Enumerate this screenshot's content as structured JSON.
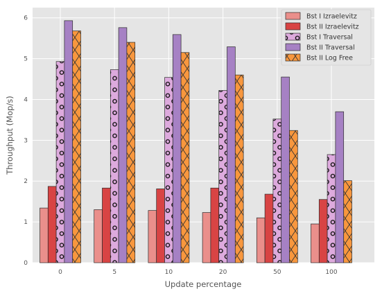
{
  "chart_data": {
    "type": "bar",
    "xlabel": "Update percentage",
    "ylabel": "Throughput (Mop/s)",
    "categories": [
      "0",
      "5",
      "10",
      "20",
      "50",
      "100"
    ],
    "ylim": [
      0,
      6.25
    ],
    "yticks": [
      0,
      1,
      2,
      3,
      4,
      5,
      6
    ],
    "grid": true,
    "legend_position": "top-right",
    "series": [
      {
        "name": "Bst I Izraelevitz",
        "color": "#ea8f8b",
        "pattern": "none",
        "values": [
          1.34,
          1.3,
          1.28,
          1.23,
          1.1,
          0.95
        ]
      },
      {
        "name": "Bst II Izraelevitz",
        "color": "#d84444",
        "pattern": "none",
        "values": [
          1.87,
          1.83,
          1.81,
          1.83,
          1.68,
          1.55
        ]
      },
      {
        "name": "Bst I Traversal",
        "color": "#ddaadd",
        "pattern": "circles",
        "values": [
          4.93,
          4.73,
          4.54,
          4.22,
          3.52,
          2.65
        ]
      },
      {
        "name": "Bst II Traversal",
        "color": "#a681c4",
        "pattern": "none",
        "values": [
          5.93,
          5.76,
          5.59,
          5.29,
          4.55,
          3.7
        ]
      },
      {
        "name": "Bst II Log Free",
        "color": "#f8973e",
        "pattern": "cross",
        "values": [
          5.68,
          5.4,
          5.15,
          4.6,
          3.24,
          2.01
        ]
      }
    ]
  }
}
